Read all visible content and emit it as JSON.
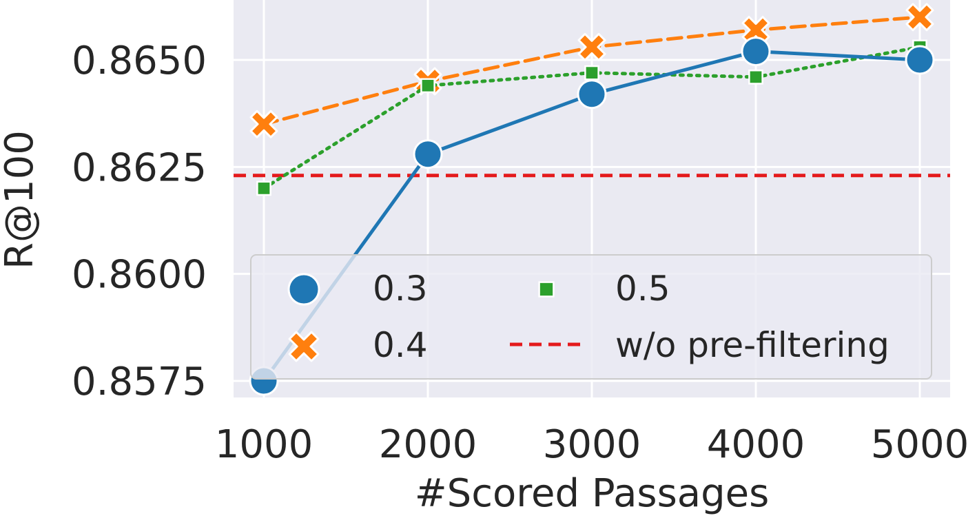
{
  "chart_data": {
    "type": "line",
    "title": "",
    "xlabel": "#Scored Passages",
    "ylabel": "R@100",
    "x": [
      1000,
      2000,
      3000,
      4000,
      5000
    ],
    "x_ticks": [
      "1000",
      "2000",
      "3000",
      "4000",
      "5000"
    ],
    "y_ticks": [
      "0.8575",
      "0.8600",
      "0.8625",
      "0.8650"
    ],
    "y_tick_values": [
      0.8575,
      0.86,
      0.8625,
      0.865
    ],
    "xlim": [
      1000,
      5000
    ],
    "ylim": [
      0.8575,
      0.866
    ],
    "grid": true,
    "legend_position": "lower-right",
    "series": [
      {
        "name": "0.3",
        "values": [
          0.8575,
          0.8628,
          0.8642,
          0.8652,
          0.865
        ],
        "color": "#1f77b4",
        "marker": "circle",
        "line_style": "solid"
      },
      {
        "name": "0.4",
        "values": [
          0.8635,
          0.8645,
          0.8653,
          0.8657,
          0.866
        ],
        "color": "#ff7f0e",
        "marker": "x",
        "line_style": "dashed"
      },
      {
        "name": "0.5",
        "values": [
          0.862,
          0.8644,
          0.8647,
          0.8646,
          0.8653
        ],
        "color": "#2ca02c",
        "marker": "square",
        "line_style": "dotted"
      }
    ],
    "reference_line": {
      "name": "w/o pre-filtering",
      "value": 0.8623,
      "color": "#e41a1c",
      "line_style": "dashed"
    }
  }
}
